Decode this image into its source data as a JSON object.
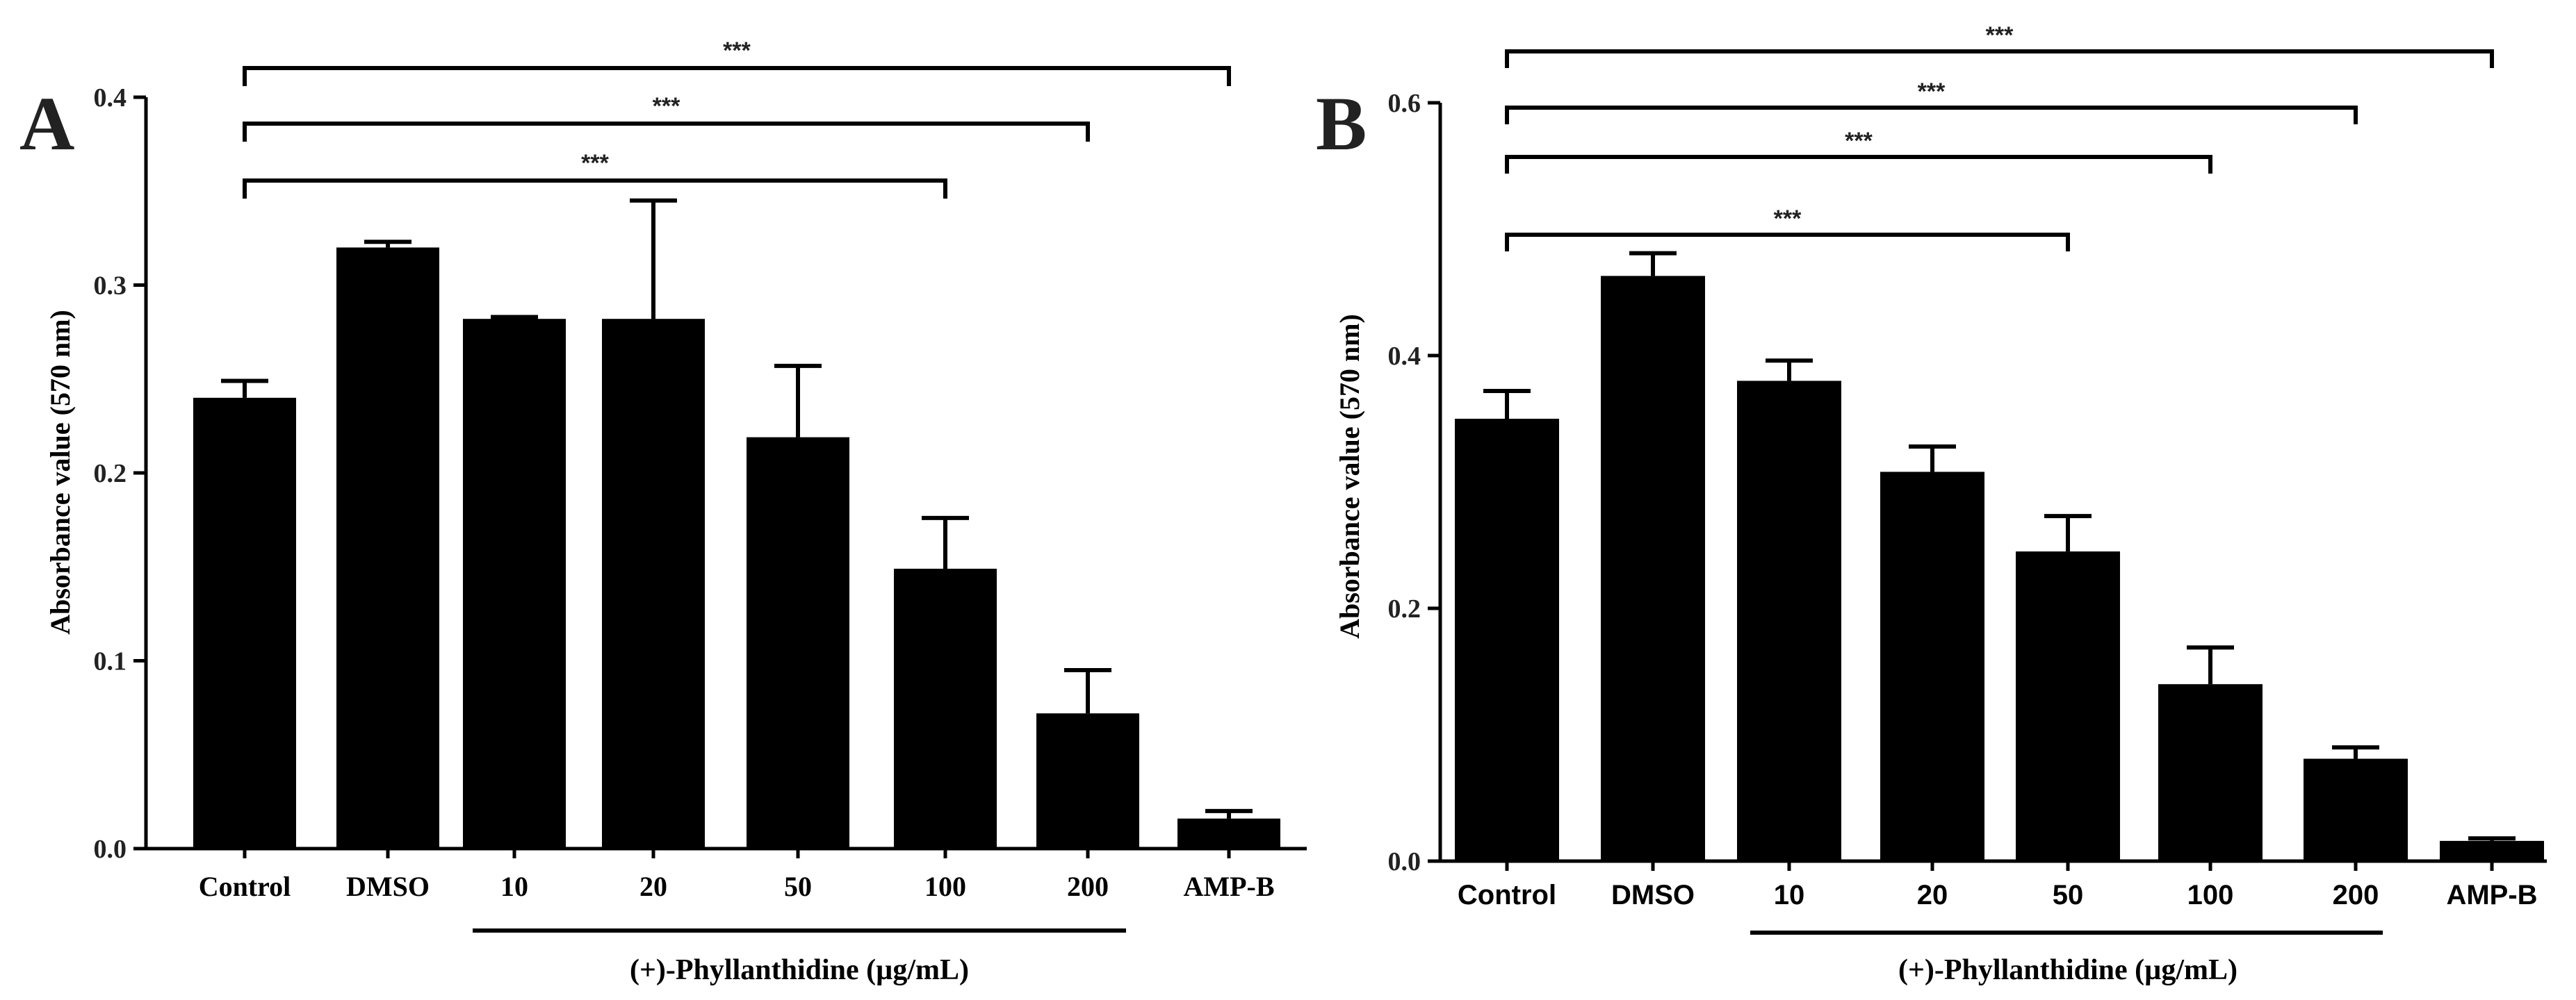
{
  "chart_data": [
    {
      "type": "bar",
      "panel": "A",
      "ylabel": "Absorbance value (570 nm)",
      "xlabel": "(+)-Phyllanthidine (µg/mL)",
      "ylim": [
        0,
        0.4
      ],
      "yticks": [
        "0.0",
        "0.1",
        "0.2",
        "0.3",
        "0.4"
      ],
      "categories": [
        "Control",
        "DMSO",
        "10",
        "20",
        "50",
        "100",
        "200",
        "AMP-B"
      ],
      "values": [
        0.24,
        0.32,
        0.282,
        0.282,
        0.219,
        0.149,
        0.072,
        0.016
      ],
      "errors": [
        0.009,
        0.003,
        0.001,
        0.063,
        0.038,
        0.027,
        0.023,
        0.004
      ],
      "significance": [
        {
          "from": "Control",
          "to": "100",
          "label": "***"
        },
        {
          "from": "Control",
          "to": "200",
          "label": "***"
        },
        {
          "from": "Control",
          "to": "AMP-B",
          "label": "***"
        }
      ]
    },
    {
      "type": "bar",
      "panel": "B",
      "ylabel": "Absorbance value (570 nm)",
      "xlabel": "(+)-Phyllanthidine (µg/mL)",
      "ylim": [
        0,
        0.6
      ],
      "yticks": [
        "0.0",
        "0.2",
        "0.4",
        "0.6"
      ],
      "categories": [
        "Control",
        "DMSO",
        "10",
        "20",
        "50",
        "100",
        "200",
        "AMP-B"
      ],
      "values": [
        0.35,
        0.463,
        0.38,
        0.308,
        0.245,
        0.14,
        0.081,
        0.016
      ],
      "errors": [
        0.022,
        0.018,
        0.016,
        0.02,
        0.028,
        0.029,
        0.009,
        0.002
      ],
      "significance": [
        {
          "from": "Control",
          "to": "50",
          "label": "***"
        },
        {
          "from": "Control",
          "to": "100",
          "label": "***"
        },
        {
          "from": "Control",
          "to": "200",
          "label": "***"
        },
        {
          "from": "Control",
          "to": "AMP-B",
          "label": "***"
        }
      ]
    }
  ]
}
